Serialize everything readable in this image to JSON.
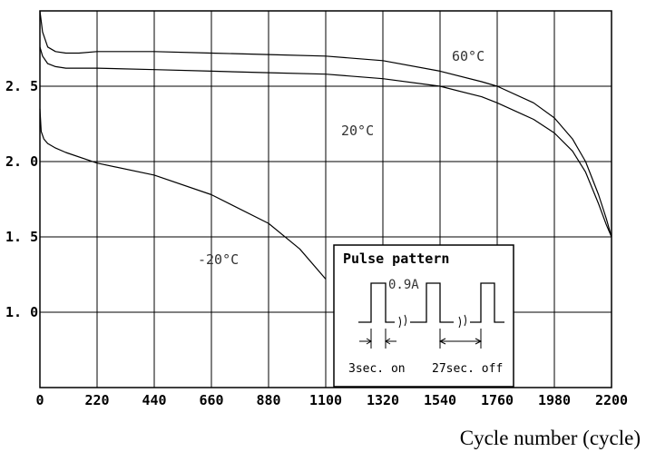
{
  "chart_data": {
    "type": "line",
    "title": "",
    "xlabel": "Cycle number (cycle)",
    "ylabel": "",
    "xlim": [
      0,
      2200
    ],
    "ylim": [
      0.5,
      3.0
    ],
    "x_ticks": [
      0,
      220,
      440,
      660,
      880,
      1100,
      1320,
      1540,
      1760,
      1980,
      2200
    ],
    "x_tick_labels": [
      "0",
      "220",
      "440",
      "660",
      "880",
      "1100",
      "1320",
      "1540",
      "1760",
      "1980",
      "2200"
    ],
    "y_ticks": [
      1.0,
      1.5,
      2.0,
      2.5
    ],
    "y_tick_labels": [
      "1. 0",
      "1. 5",
      "2. 0",
      "2. 5"
    ],
    "grid": true,
    "series": [
      {
        "name": "60°C",
        "x": [
          0,
          10,
          30,
          60,
          100,
          150,
          220,
          440,
          660,
          880,
          1100,
          1320,
          1540,
          1700,
          1760,
          1900,
          1980,
          2050,
          2100,
          2150,
          2180,
          2200
        ],
        "y": [
          3.0,
          2.86,
          2.76,
          2.73,
          2.72,
          2.72,
          2.73,
          2.73,
          2.72,
          2.71,
          2.7,
          2.67,
          2.6,
          2.53,
          2.5,
          2.39,
          2.29,
          2.15,
          2.0,
          1.78,
          1.62,
          1.5
        ]
      },
      {
        "name": "20°C",
        "x": [
          0,
          10,
          30,
          60,
          100,
          220,
          440,
          660,
          880,
          1100,
          1320,
          1540,
          1700,
          1760,
          1900,
          1980,
          2050,
          2100,
          2150,
          2180,
          2200
        ],
        "y": [
          2.76,
          2.7,
          2.65,
          2.63,
          2.62,
          2.62,
          2.61,
          2.6,
          2.59,
          2.58,
          2.55,
          2.5,
          2.43,
          2.39,
          2.28,
          2.19,
          2.07,
          1.93,
          1.72,
          1.58,
          1.5
        ]
      },
      {
        "name": "-20°C",
        "x": [
          0,
          5,
          15,
          30,
          60,
          100,
          220,
          440,
          660,
          880,
          1000,
          1100
        ],
        "y": [
          2.35,
          2.2,
          2.15,
          2.12,
          2.09,
          2.06,
          1.99,
          1.91,
          1.78,
          1.59,
          1.42,
          1.22
        ]
      }
    ],
    "annotations": [
      {
        "text": "60°C",
        "series": "60°C"
      },
      {
        "text": "20°C",
        "series": "20°C"
      },
      {
        "text": "-20°C",
        "series": "-20°C"
      }
    ],
    "inset": {
      "title": "Pulse pattern",
      "amplitude_label": "0.9A",
      "on_label": "3sec. on",
      "off_label": "27sec. off"
    }
  }
}
